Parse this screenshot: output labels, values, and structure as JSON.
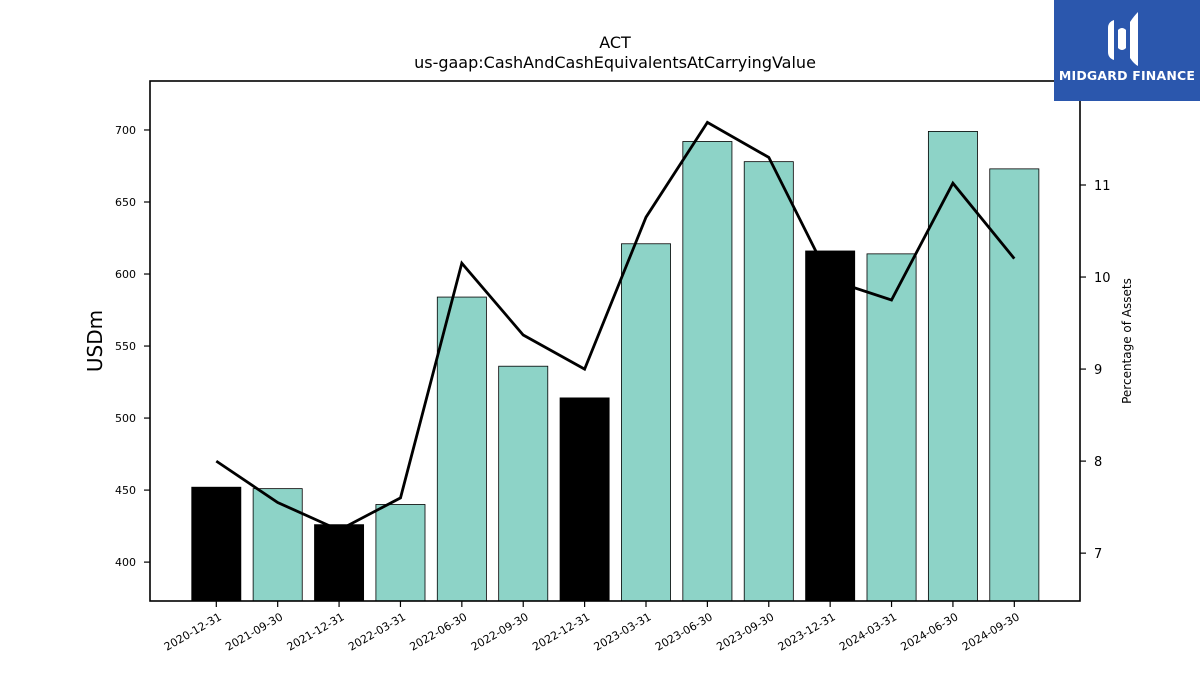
{
  "chart_data": {
    "type": "bar",
    "title": "ACT",
    "subtitle": "us-gaap:CashAndCashEquivalentsAtCarryingValue",
    "ylabel": "USDm",
    "y2label": "Percentage of Assets",
    "categories": [
      "2020-12-31",
      "2021-09-30",
      "2021-12-31",
      "2022-03-31",
      "2022-06-30",
      "2022-09-30",
      "2022-12-31",
      "2023-03-31",
      "2023-06-30",
      "2023-09-30",
      "2023-12-31",
      "2024-03-31",
      "2024-06-30",
      "2024-09-30"
    ],
    "series": [
      {
        "type": "bar",
        "values": [
          452,
          451,
          426,
          440,
          584,
          536,
          514,
          621,
          692,
          678,
          616,
          614,
          699,
          673
        ],
        "bar_colors": [
          "#000000",
          "#8dd3c7",
          "#000000",
          "#8dd3c7",
          "#8dd3c7",
          "#8dd3c7",
          "#000000",
          "#8dd3c7",
          "#8dd3c7",
          "#8dd3c7",
          "#000000",
          "#8dd3c7",
          "#8dd3c7",
          "#8dd3c7"
        ]
      },
      {
        "type": "line",
        "axis": "right",
        "color": "#000000",
        "values": [
          8.0,
          7.55,
          7.25,
          7.6,
          10.15,
          9.37,
          9.0,
          10.65,
          11.68,
          11.3,
          9.97,
          9.75,
          11.02,
          10.2
        ]
      }
    ],
    "ylim": [
      373,
      734
    ],
    "y2lim": [
      6.48,
      12.13
    ],
    "yticks": [
      400,
      450,
      500,
      550,
      600,
      650,
      700
    ],
    "y2ticks": [
      7,
      8,
      9,
      10,
      11
    ],
    "grid": false
  },
  "logo": {
    "text": "MIDGARD FINANCE",
    "background": "#2b57ad"
  }
}
